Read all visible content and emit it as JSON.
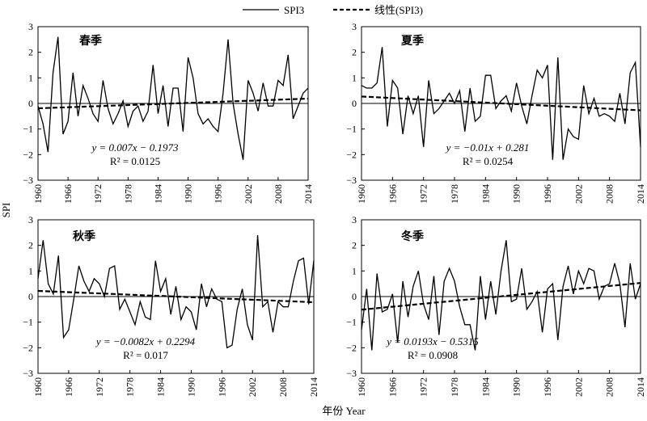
{
  "legend": {
    "solid_label": "SPI3",
    "dashed_label": "线性(SPI3)"
  },
  "ylabel": "SPI",
  "xlabel": "年份 Year",
  "chart_data": [
    {
      "type": "line",
      "panel_title": "春季",
      "x_start": 1960,
      "x_end": 2014,
      "xticks": [
        1960,
        1966,
        1972,
        1978,
        1984,
        1990,
        1996,
        2002,
        2008,
        2014
      ],
      "ylim": [
        -3,
        3
      ],
      "yticks": [
        -3,
        -2,
        -1,
        0,
        1,
        2,
        3
      ],
      "series": [
        {
          "name": "SPI3",
          "values": [
            -0.1,
            -0.8,
            -1.9,
            1.2,
            2.6,
            -1.2,
            -0.7,
            1.2,
            -0.5,
            0.7,
            0.2,
            -0.4,
            -0.7,
            0.9,
            -0.2,
            -0.8,
            -0.4,
            0.1,
            -0.9,
            -0.3,
            -0.1,
            -0.7,
            -0.3,
            1.5,
            -0.4,
            0.7,
            -0.9,
            0.6,
            0.6,
            -1.1,
            1.8,
            1.0,
            -0.4,
            -0.8,
            -0.6,
            -0.9,
            -1.1,
            0.4,
            2.5,
            0.0,
            -1.2,
            -2.2,
            0.9,
            0.4,
            -0.3,
            0.8,
            -0.1,
            -0.1,
            0.9,
            0.7,
            1.9,
            -0.6,
            -0.1,
            0.4,
            0.6
          ]
        }
      ],
      "trend": {
        "slope": 0.007,
        "intercept": -0.1973
      },
      "equation": "y = 0.007x − 0.1973",
      "r2": "R² = 0.0125"
    },
    {
      "type": "line",
      "panel_title": "夏季",
      "x_start": 1960,
      "x_end": 2014,
      "xticks": [
        1960,
        1966,
        1972,
        1978,
        1984,
        1990,
        1996,
        2002,
        2008,
        2014
      ],
      "ylim": [
        -3,
        3
      ],
      "yticks": [
        -3,
        -2,
        -1,
        0,
        1,
        2,
        3
      ],
      "series": [
        {
          "name": "SPI3",
          "values": [
            0.7,
            0.6,
            0.6,
            0.8,
            2.2,
            -0.9,
            0.9,
            0.6,
            -1.2,
            0.3,
            -0.4,
            0.3,
            -1.7,
            0.9,
            -0.4,
            -0.2,
            0.1,
            0.4,
            0.0,
            0.5,
            -1.1,
            0.6,
            -0.7,
            -0.5,
            1.1,
            1.1,
            -0.2,
            0.1,
            0.3,
            -0.3,
            0.8,
            -0.1,
            -0.8,
            0.3,
            1.3,
            1.0,
            1.5,
            -2.2,
            1.8,
            -2.2,
            -1.0,
            -1.3,
            -1.4,
            0.7,
            -0.4,
            0.2,
            -0.5,
            -0.4,
            -0.5,
            -0.7,
            0.4,
            -0.8,
            1.2,
            1.6,
            -1.7
          ]
        }
      ],
      "trend": {
        "slope": -0.01,
        "intercept": 0.281
      },
      "equation": "y = −0.01x + 0.281",
      "r2": "R² = 0.0254"
    },
    {
      "type": "line",
      "panel_title": "秋季",
      "x_start": 1960,
      "x_end": 2014,
      "xticks": [
        1960,
        1966,
        1972,
        1978,
        1984,
        1990,
        1996,
        2002,
        2008,
        2014
      ],
      "ylim": [
        -3,
        3
      ],
      "yticks": [
        -3,
        -2,
        -1,
        0,
        1,
        2,
        3
      ],
      "series": [
        {
          "name": "SPI3",
          "values": [
            0.7,
            2.2,
            0.5,
            0.1,
            1.6,
            -1.6,
            -1.3,
            -0.1,
            1.2,
            0.6,
            0.2,
            0.7,
            0.5,
            0.0,
            1.1,
            1.2,
            -0.5,
            -0.1,
            -0.6,
            -1.1,
            -0.2,
            -0.8,
            -0.9,
            1.4,
            0.2,
            0.7,
            -0.7,
            0.4,
            -0.9,
            -0.4,
            -0.6,
            -1.3,
            0.5,
            -0.4,
            0.3,
            -0.1,
            -0.2,
            -2.0,
            -1.9,
            -0.5,
            0.3,
            -1.1,
            -1.7,
            2.4,
            -0.4,
            -0.2,
            -1.4,
            -0.2,
            -0.4,
            -0.4,
            0.6,
            1.4,
            1.5,
            -0.3,
            1.4
          ]
        }
      ],
      "trend": {
        "slope": -0.0082,
        "intercept": 0.2294
      },
      "equation": "y = −0.0082x + 0.2294",
      "r2": "R² = 0.017"
    },
    {
      "type": "line",
      "panel_title": "冬季",
      "x_start": 1960,
      "x_end": 2014,
      "xticks": [
        1960,
        1966,
        1972,
        1978,
        1984,
        1990,
        1996,
        2002,
        2008,
        2014
      ],
      "ylim": [
        -3,
        3
      ],
      "yticks": [
        -3,
        -2,
        -1,
        0,
        1,
        2,
        3
      ],
      "series": [
        {
          "name": "SPI3",
          "values": [
            -1.3,
            0.3,
            -2.1,
            0.9,
            -0.6,
            -0.5,
            0.1,
            -1.8,
            0.6,
            -0.8,
            0.4,
            1.0,
            -0.3,
            -0.9,
            0.8,
            -1.5,
            0.6,
            1.1,
            0.6,
            -0.4,
            -1.1,
            -1.1,
            -2.1,
            0.8,
            -0.9,
            0.6,
            -0.7,
            1.0,
            2.2,
            -0.2,
            -0.1,
            1.1,
            -0.5,
            -0.2,
            0.2,
            -1.4,
            0.3,
            0.5,
            -1.7,
            0.4,
            1.2,
            0.1,
            1.0,
            0.5,
            1.1,
            1.0,
            -0.1,
            0.4,
            0.5,
            1.3,
            0.5,
            -1.2,
            1.3,
            -0.1,
            0.5
          ]
        }
      ],
      "trend": {
        "slope": 0.0193,
        "intercept": -0.5315
      },
      "equation": "y = 0.0193x − 0.5315",
      "r2": "R² = 0.0908"
    }
  ]
}
